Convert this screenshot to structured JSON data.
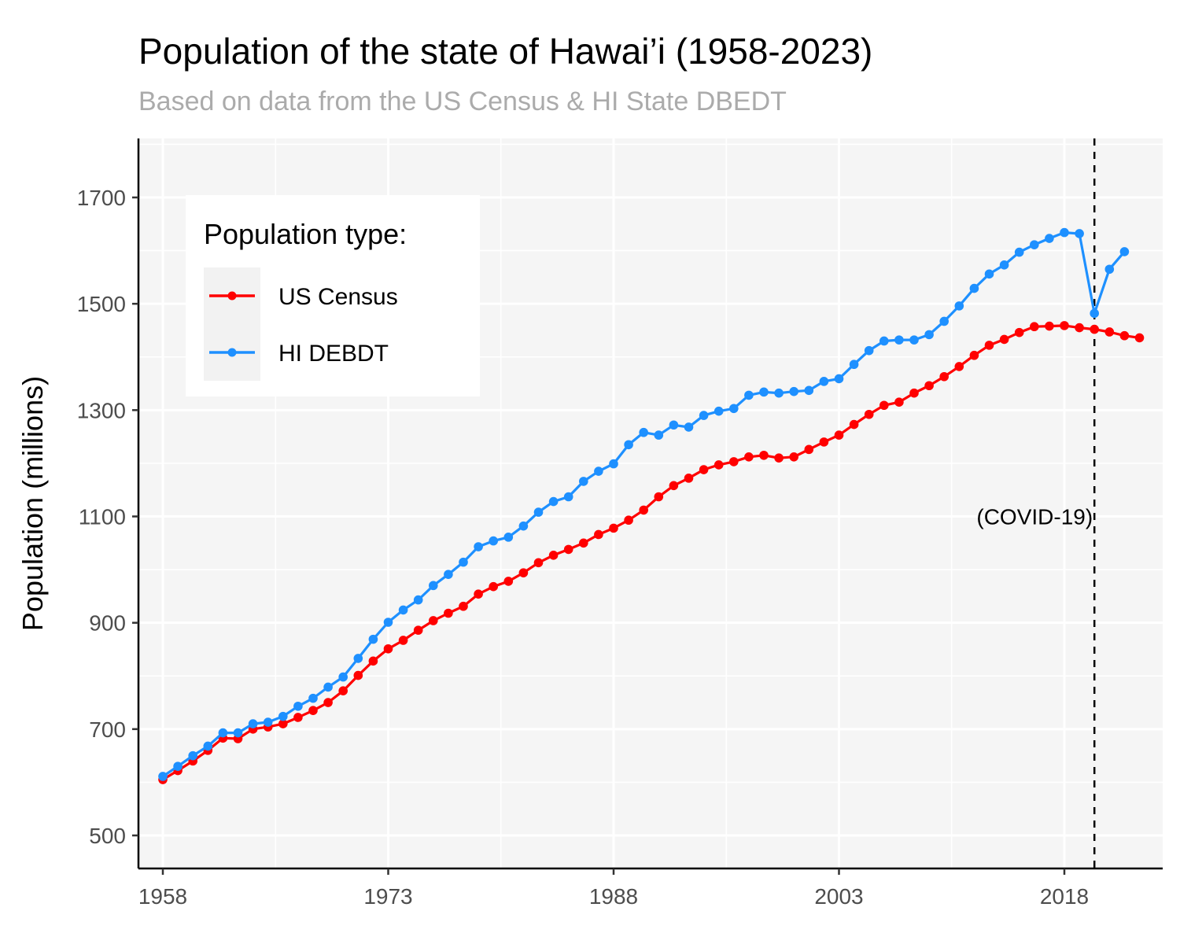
{
  "chart_data": {
    "type": "line",
    "title": "Population of the state of Hawai’i (1958-2023)",
    "subtitle": "Based on data from the US Census & HI State DBEDT",
    "xlabel": "",
    "ylabel": "Population (millions)",
    "xlim": [
      1958,
      2024
    ],
    "ylim": [
      500,
      1800
    ],
    "x_ticks": [
      1958,
      1973,
      1988,
      2003,
      2018
    ],
    "y_ticks": [
      500,
      700,
      900,
      1100,
      1300,
      1500,
      1700
    ],
    "grid": true,
    "legend": {
      "title": "Population type:",
      "position": "top-left"
    },
    "annotations": [
      {
        "type": "vline",
        "x": 2020,
        "style": "dashed",
        "color": "#000000"
      },
      {
        "type": "text",
        "x": 2020,
        "y": 1100,
        "text": "(COVID-19)"
      }
    ],
    "series": [
      {
        "name": "US Census",
        "color": "#ff0000",
        "x": [
          1958,
          1959,
          1960,
          1961,
          1962,
          1963,
          1964,
          1965,
          1966,
          1967,
          1968,
          1969,
          1970,
          1971,
          1972,
          1973,
          1974,
          1975,
          1976,
          1977,
          1978,
          1979,
          1980,
          1981,
          1982,
          1983,
          1984,
          1985,
          1986,
          1987,
          1988,
          1989,
          1990,
          1991,
          1992,
          1993,
          1994,
          1995,
          1996,
          1997,
          1998,
          1999,
          2000,
          2001,
          2002,
          2003,
          2004,
          2005,
          2006,
          2007,
          2008,
          2009,
          2010,
          2011,
          2012,
          2013,
          2014,
          2015,
          2016,
          2017,
          2018,
          2019,
          2020,
          2021,
          2022,
          2023
        ],
        "values": [
          605,
          622,
          640,
          660,
          683,
          682,
          700,
          704,
          710,
          722,
          735,
          750,
          772,
          801,
          828,
          851,
          867,
          886,
          904,
          918,
          931,
          954,
          968,
          978,
          994,
          1013,
          1027,
          1038,
          1050,
          1066,
          1078,
          1093,
          1112,
          1137,
          1158,
          1172,
          1188,
          1197,
          1203,
          1212,
          1215,
          1210,
          1212,
          1226,
          1240,
          1253,
          1273,
          1292,
          1309,
          1315,
          1332,
          1346,
          1363,
          1382,
          1403,
          1422,
          1433,
          1446,
          1457,
          1458,
          1459,
          1455,
          1452,
          1447,
          1440,
          1436
        ]
      },
      {
        "name": "HI DEBDT",
        "color": "#1e90ff",
        "x": [
          1958,
          1959,
          1960,
          1961,
          1962,
          1963,
          1964,
          1965,
          1966,
          1967,
          1968,
          1969,
          1970,
          1971,
          1972,
          1973,
          1974,
          1975,
          1976,
          1977,
          1978,
          1979,
          1980,
          1981,
          1982,
          1983,
          1984,
          1985,
          1986,
          1987,
          1988,
          1989,
          1990,
          1991,
          1992,
          1993,
          1994,
          1995,
          1996,
          1997,
          1998,
          1999,
          2000,
          2001,
          2002,
          2003,
          2004,
          2005,
          2006,
          2007,
          2008,
          2009,
          2010,
          2011,
          2012,
          2013,
          2014,
          2015,
          2016,
          2017,
          2018,
          2019,
          2020,
          2021,
          2022
        ],
        "values": [
          611,
          630,
          650,
          668,
          693,
          693,
          710,
          713,
          724,
          743,
          758,
          779,
          798,
          833,
          869,
          901,
          924,
          943,
          970,
          991,
          1014,
          1043,
          1054,
          1061,
          1082,
          1108,
          1128,
          1137,
          1166,
          1185,
          1199,
          1235,
          1258,
          1253,
          1272,
          1268,
          1290,
          1298,
          1303,
          1328,
          1334,
          1332,
          1335,
          1337,
          1354,
          1359,
          1386,
          1412,
          1430,
          1432,
          1432,
          1442,
          1467,
          1496,
          1529,
          1556,
          1573,
          1597,
          1611,
          1623,
          1634,
          1632,
          1482,
          1565,
          1598
        ]
      }
    ]
  }
}
